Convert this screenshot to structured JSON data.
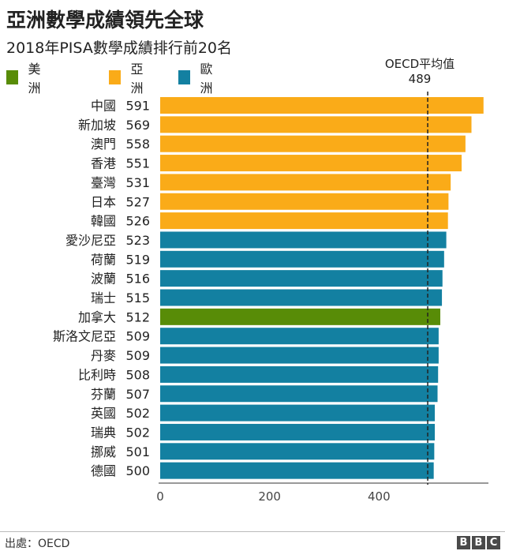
{
  "title": "亞洲數學成績領先全球",
  "subtitle": "2018年PISA數學成績排行前20名",
  "legend": [
    {
      "label": "美洲",
      "color": "#588C07"
    },
    {
      "label": "亞洲",
      "color": "#FAAB18"
    },
    {
      "label": "歐洲",
      "color": "#1380A1"
    }
  ],
  "reference": {
    "label": "OECD平均值",
    "value_label": "489"
  },
  "source": "出處：OECD",
  "logo": [
    "B",
    "B",
    "C"
  ],
  "chart_data": {
    "type": "bar",
    "orientation": "horizontal",
    "categories": [
      "中國",
      "新加坡",
      "澳門",
      "香港",
      "臺灣",
      "日本",
      "韓國",
      "愛沙尼亞",
      "荷蘭",
      "波蘭",
      "瑞士",
      "加拿大",
      "斯洛文尼亞",
      "丹麥",
      "比利時",
      "芬蘭",
      "英國",
      "瑞典",
      "挪威",
      "德國"
    ],
    "values": [
      591,
      569,
      558,
      551,
      531,
      527,
      526,
      523,
      519,
      516,
      515,
      512,
      509,
      509,
      508,
      507,
      502,
      502,
      501,
      500
    ],
    "value_labels": [
      "591",
      "569",
      "558",
      "551",
      "531",
      "527",
      "526",
      "523",
      "519",
      "516",
      "515",
      "512",
      "509",
      "509",
      "508",
      "507",
      "502",
      "502",
      "501",
      "500"
    ],
    "regions": [
      "亞洲",
      "亞洲",
      "亞洲",
      "亞洲",
      "亞洲",
      "亞洲",
      "亞洲",
      "歐洲",
      "歐洲",
      "歐洲",
      "歐洲",
      "美洲",
      "歐洲",
      "歐洲",
      "歐洲",
      "歐洲",
      "歐洲",
      "歐洲",
      "歐洲",
      "歐洲"
    ],
    "xlim": [
      0,
      600
    ],
    "xticks": [
      "0",
      "200",
      "400"
    ],
    "xtick_values": [
      0,
      200,
      400
    ],
    "reference_line": 489,
    "colors": {
      "美洲": "#588C07",
      "亞洲": "#FAAB18",
      "歐洲": "#1380A1"
    }
  }
}
